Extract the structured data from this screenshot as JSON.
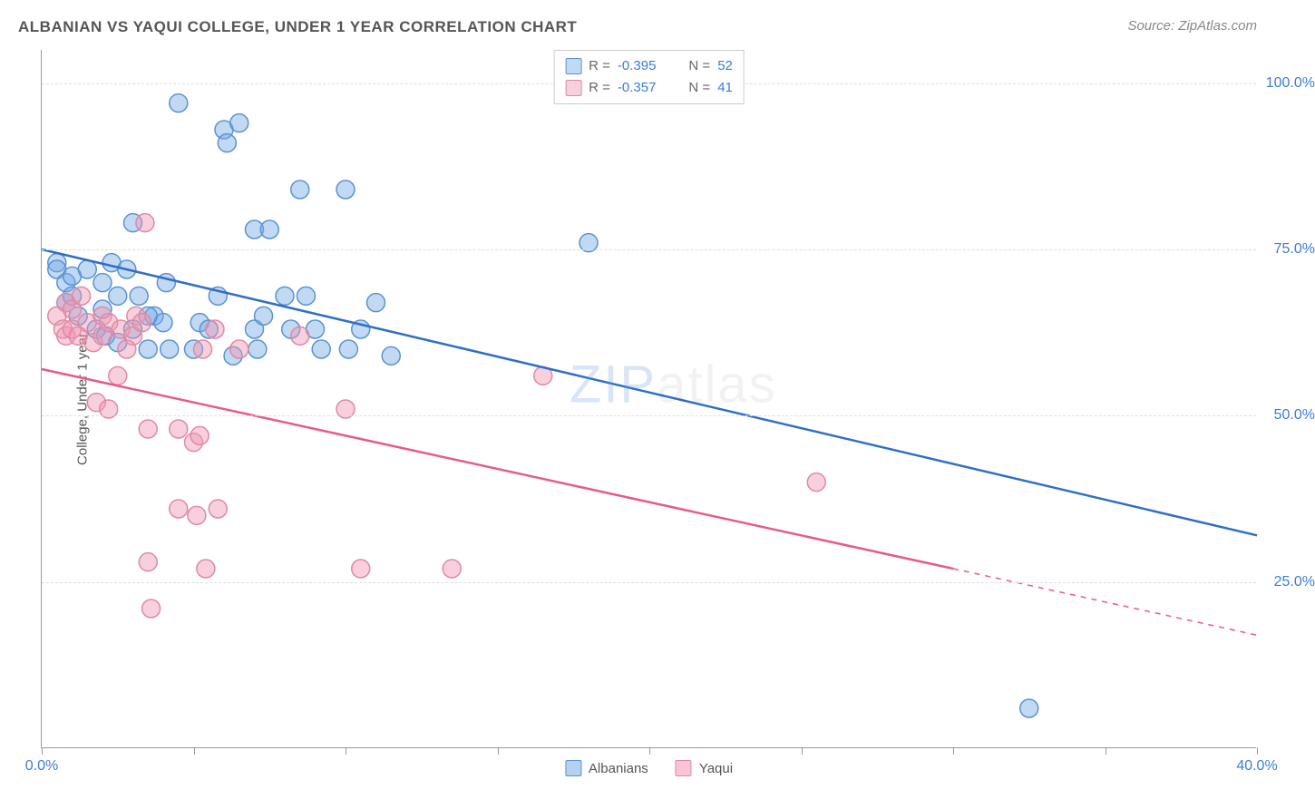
{
  "title": "ALBANIAN VS YAQUI COLLEGE, UNDER 1 YEAR CORRELATION CHART",
  "source": "Source: ZipAtlas.com",
  "y_axis_title": "College, Under 1 year",
  "watermark_prefix": "ZIP",
  "watermark_suffix": "atlas",
  "chart": {
    "type": "scatter",
    "xlim": [
      0,
      40
    ],
    "ylim": [
      0,
      105
    ],
    "x_ticks": [
      0,
      5,
      10,
      15,
      20,
      25,
      30,
      35,
      40
    ],
    "x_tick_labels": {
      "0": "0.0%",
      "40": "40.0%"
    },
    "y_ticks": [
      25,
      50,
      75,
      100
    ],
    "y_tick_labels": {
      "25": "25.0%",
      "50": "50.0%",
      "75": "75.0%",
      "100": "100.0%"
    },
    "background_color": "#ffffff",
    "grid_color": "#dddddd",
    "marker_radius": 10,
    "marker_stroke_width": 1.5,
    "line_width": 2.5,
    "series": [
      {
        "name": "Albanians",
        "fill_color": "rgba(120,170,230,0.45)",
        "stroke_color": "#5a93d0",
        "line_color": "#2f6fc5",
        "r_label": "R = ",
        "r_value": "-0.395",
        "n_label": "N = ",
        "n_value": "52",
        "regression": {
          "x1": 0,
          "y1": 75,
          "x2": 40,
          "y2": 32,
          "dash_from_x": null
        },
        "points": [
          [
            0.5,
            73
          ],
          [
            0.5,
            72
          ],
          [
            0.8,
            67
          ],
          [
            0.8,
            70
          ],
          [
            1.0,
            71
          ],
          [
            1.0,
            68
          ],
          [
            1.2,
            65
          ],
          [
            1.5,
            72
          ],
          [
            1.8,
            63
          ],
          [
            2.0,
            70
          ],
          [
            2.0,
            66
          ],
          [
            2.1,
            62
          ],
          [
            2.3,
            73
          ],
          [
            2.5,
            68
          ],
          [
            2.8,
            72
          ],
          [
            3.0,
            79
          ],
          [
            3.0,
            63
          ],
          [
            3.2,
            68
          ],
          [
            3.5,
            60
          ],
          [
            3.7,
            65
          ],
          [
            4.0,
            64
          ],
          [
            4.1,
            70
          ],
          [
            4.5,
            97
          ],
          [
            5.0,
            60
          ],
          [
            5.2,
            64
          ],
          [
            5.5,
            63
          ],
          [
            5.8,
            68
          ],
          [
            6.0,
            93
          ],
          [
            6.1,
            91
          ],
          [
            6.3,
            59
          ],
          [
            6.5,
            94
          ],
          [
            7.0,
            78
          ],
          [
            7.0,
            63
          ],
          [
            7.1,
            60
          ],
          [
            7.3,
            65
          ],
          [
            7.5,
            78
          ],
          [
            8.0,
            68
          ],
          [
            8.2,
            63
          ],
          [
            8.5,
            84
          ],
          [
            8.7,
            68
          ],
          [
            9.0,
            63
          ],
          [
            9.2,
            60
          ],
          [
            10.0,
            84
          ],
          [
            10.1,
            60
          ],
          [
            10.5,
            63
          ],
          [
            11.0,
            67
          ],
          [
            11.5,
            59
          ],
          [
            18.0,
            76
          ],
          [
            32.5,
            6
          ],
          [
            3.5,
            65
          ],
          [
            4.2,
            60
          ],
          [
            2.5,
            61
          ]
        ]
      },
      {
        "name": "Yaqui",
        "fill_color": "rgba(240,150,180,0.45)",
        "stroke_color": "#e089a3",
        "line_color": "#e85a8a",
        "r_label": "R = ",
        "r_value": "-0.357",
        "n_label": "N = ",
        "n_value": "41",
        "regression": {
          "x1": 0,
          "y1": 57,
          "x2": 40,
          "y2": 17,
          "dash_from_x": 30
        },
        "points": [
          [
            0.5,
            65
          ],
          [
            0.7,
            63
          ],
          [
            0.8,
            67
          ],
          [
            0.8,
            62
          ],
          [
            1.0,
            63
          ],
          [
            1.0,
            66
          ],
          [
            1.2,
            62
          ],
          [
            1.3,
            68
          ],
          [
            1.5,
            64
          ],
          [
            1.7,
            61
          ],
          [
            1.8,
            52
          ],
          [
            2.0,
            62
          ],
          [
            2.0,
            65
          ],
          [
            2.2,
            51
          ],
          [
            2.2,
            64
          ],
          [
            2.5,
            56
          ],
          [
            2.6,
            63
          ],
          [
            3.0,
            62
          ],
          [
            3.1,
            65
          ],
          [
            3.3,
            64
          ],
          [
            3.4,
            79
          ],
          [
            3.5,
            48
          ],
          [
            3.5,
            28
          ],
          [
            3.6,
            21
          ],
          [
            4.5,
            48
          ],
          [
            4.5,
            36
          ],
          [
            5.0,
            46
          ],
          [
            5.1,
            35
          ],
          [
            5.2,
            47
          ],
          [
            5.3,
            60
          ],
          [
            5.4,
            27
          ],
          [
            5.7,
            63
          ],
          [
            5.8,
            36
          ],
          [
            6.5,
            60
          ],
          [
            8.5,
            62
          ],
          [
            10.0,
            51
          ],
          [
            10.5,
            27
          ],
          [
            13.5,
            27
          ],
          [
            16.5,
            56
          ],
          [
            25.5,
            40
          ],
          [
            2.8,
            60
          ]
        ]
      }
    ],
    "legend_bottom": [
      {
        "label": "Albanians",
        "fill": "rgba(120,170,230,0.55)",
        "stroke": "#5a93d0"
      },
      {
        "label": "Yaqui",
        "fill": "rgba(240,150,180,0.55)",
        "stroke": "#e089a3"
      }
    ]
  }
}
